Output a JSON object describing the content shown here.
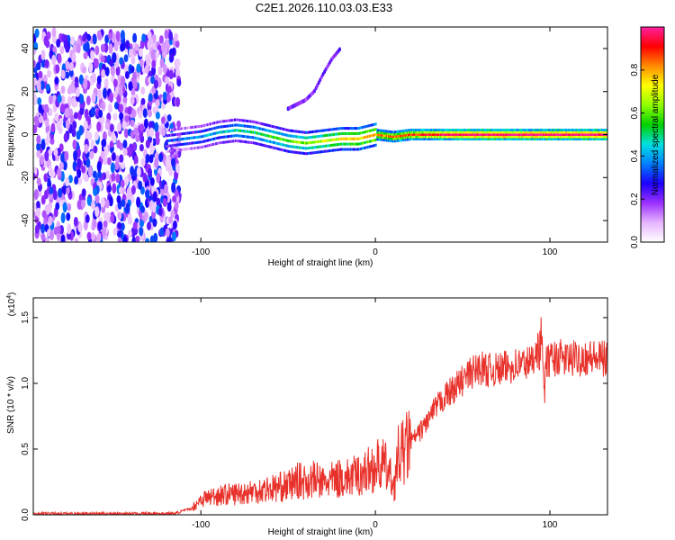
{
  "title": "C2E1.2026.110.03.03.E33",
  "chart_data": [
    {
      "type": "heatmap",
      "xlabel": "Height of straight line (km)",
      "ylabel": "Frequency (Hz)",
      "xlim": [
        -196,
        133
      ],
      "ylim": [
        -50,
        50
      ],
      "x_ticks": [
        -100,
        0,
        100
      ],
      "y_ticks": [
        -40,
        -20,
        0,
        20,
        40
      ],
      "x_tick_labels": [
        "-100",
        "0",
        "100"
      ],
      "y_tick_labels": [
        "-40",
        "-20",
        "0",
        "20",
        "40"
      ],
      "colorbar": {
        "label": "Normalized spectral amplitude",
        "range": [
          0,
          1
        ],
        "ticks": [
          0.0,
          0.2,
          0.4,
          0.6,
          0.8
        ],
        "tick_labels": [
          "0.0",
          "0.2",
          "0.4",
          "0.6",
          "0.8"
        ],
        "colormap": [
          "#ffffff",
          "#e6b4ff",
          "#9b30ff",
          "#1c00ff",
          "#0080ff",
          "#00e0e0",
          "#00d000",
          "#90ff00",
          "#ffff00",
          "#ff8c00",
          "#ff0000",
          "#ff20a0"
        ]
      },
      "regions": [
        {
          "name": "noise",
          "x_range": [
            -196,
            -112
          ],
          "y_range": [
            -50,
            48
          ],
          "amplitude": 0.2
        },
        {
          "name": "signal-line",
          "points": [
            [
              -120,
              -3
            ],
            [
              -110,
              -2
            ],
            [
              -100,
              -1
            ],
            [
              -90,
              1
            ],
            [
              -80,
              2
            ],
            [
              -70,
              1
            ],
            [
              -60,
              -1
            ],
            [
              -50,
              -3
            ],
            [
              -40,
              -4
            ],
            [
              -30,
              -3
            ],
            [
              -20,
              -2
            ],
            [
              -10,
              -2
            ],
            [
              0,
              0
            ],
            [
              10,
              -1
            ],
            [
              20,
              0
            ],
            [
              133,
              0
            ]
          ],
          "amplitude": [
            0.3,
            1.0
          ]
        },
        {
          "name": "faint-branch",
          "points": [
            [
              -50,
              12
            ],
            [
              -40,
              16
            ],
            [
              -35,
              20
            ],
            [
              -30,
              28
            ],
            [
              -25,
              35
            ],
            [
              -20,
              40
            ]
          ],
          "amplitude": 0.15
        }
      ]
    },
    {
      "type": "line",
      "xlabel": "Height of straight line (km)",
      "ylabel": "SNR (10 * v/v)",
      "scale_label_base": "(x10",
      "scale_label_exp": "4",
      "scale_label_end": ")",
      "xlim": [
        -196,
        133
      ],
      "ylim": [
        0,
        1.65
      ],
      "x_ticks": [
        -100,
        0,
        100
      ],
      "y_ticks": [
        0.0,
        0.5,
        1.0,
        1.5
      ],
      "x_tick_labels": [
        "-100",
        "0",
        "100"
      ],
      "y_tick_labels": [
        "0.0",
        "0.5",
        "1.0",
        "1.5"
      ],
      "color": "#e8312a",
      "x": [
        -196,
        -170,
        -140,
        -115,
        -105,
        -100,
        -90,
        -80,
        -70,
        -60,
        -50,
        -45,
        -40,
        -35,
        -30,
        -25,
        -20,
        -15,
        -10,
        -5,
        0,
        5,
        8,
        10,
        11,
        13,
        15,
        20,
        25,
        30,
        35,
        40,
        45,
        50,
        55,
        60,
        65,
        70,
        75,
        80,
        85,
        90,
        92,
        94,
        95,
        96,
        97,
        98,
        100,
        105,
        110,
        120,
        133
      ],
      "values": [
        0.01,
        0.01,
        0.01,
        0.01,
        0.05,
        0.12,
        0.15,
        0.16,
        0.18,
        0.2,
        0.22,
        0.26,
        0.25,
        0.27,
        0.24,
        0.26,
        0.28,
        0.28,
        0.3,
        0.33,
        0.37,
        0.38,
        0.3,
        0.25,
        0.22,
        0.44,
        0.46,
        0.55,
        0.62,
        0.72,
        0.82,
        0.9,
        0.96,
        1.02,
        1.08,
        1.12,
        1.1,
        1.1,
        1.12,
        1.14,
        1.15,
        1.16,
        1.3,
        1.22,
        1.42,
        1.1,
        0.95,
        1.16,
        1.18,
        1.2,
        1.18,
        1.2,
        1.18
      ]
    }
  ]
}
